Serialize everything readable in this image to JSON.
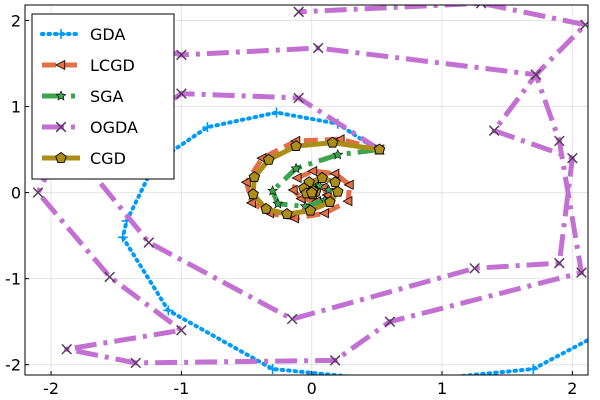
{
  "chart_data": {
    "type": "line",
    "title": "",
    "xlabel": "",
    "ylabel": "",
    "xlim": [
      -2.2,
      2.12
    ],
    "ylim": [
      -2.12,
      2.18
    ],
    "grid": true,
    "legend_position": "top-left",
    "x_ticks": [
      -2,
      -1,
      0,
      1,
      2
    ],
    "x_tick_labels": [
      "-2",
      "-1",
      "0",
      "1",
      "2"
    ],
    "y_ticks": [
      -2,
      -1,
      0,
      1,
      2
    ],
    "y_tick_labels": [
      "-2",
      "-1",
      "0",
      "1",
      "2"
    ],
    "series": [
      {
        "name": "GDA",
        "color": "#009AFA",
        "line_style": "dotted",
        "marker": "plus",
        "points": [
          [
            0.5,
            0.5
          ],
          [
            0.2,
            0.8
          ],
          [
            -0.27,
            0.93
          ],
          [
            -0.8,
            0.76
          ],
          [
            -1.2,
            0.35
          ],
          [
            -1.42,
            -0.33
          ],
          [
            -1.45,
            -0.52
          ],
          [
            -1.1,
            -1.37
          ],
          [
            -0.3,
            -2.05
          ],
          [
            0.7,
            -2.2
          ],
          [
            1.7,
            -2.05
          ],
          [
            2.2,
            -1.65
          ]
        ]
      },
      {
        "name": "LCGD",
        "color": "#E26F46",
        "line_style": "dashed",
        "marker": "triangle-left",
        "points": [
          [
            0.52,
            0.5
          ],
          [
            0.22,
            0.62
          ],
          [
            -0.12,
            0.6
          ],
          [
            -0.38,
            0.4
          ],
          [
            -0.5,
            0.12
          ],
          [
            -0.46,
            -0.12
          ],
          [
            -0.32,
            -0.24
          ],
          [
            -0.13,
            -0.3
          ],
          [
            0.1,
            -0.24
          ],
          [
            0.28,
            -0.1
          ],
          [
            0.29,
            0.09
          ],
          [
            0.18,
            0.22
          ],
          [
            0.01,
            0.25
          ],
          [
            -0.11,
            0.17
          ],
          [
            -0.14,
            0.03
          ],
          [
            -0.08,
            -0.07
          ],
          [
            0.04,
            -0.1
          ],
          [
            0.12,
            -0.03
          ],
          [
            0.09,
            0.06
          ],
          [
            0.02,
            0.07
          ],
          [
            -0.02,
            0.03
          ],
          [
            0.0,
            0.0
          ]
        ]
      },
      {
        "name": "SGA",
        "color": "#3DA44D",
        "line_style": "dash-dot",
        "marker": "star",
        "points": [
          [
            0.52,
            0.5
          ],
          [
            0.2,
            0.44
          ],
          [
            -0.12,
            0.28
          ],
          [
            -0.3,
            0.02
          ],
          [
            -0.26,
            -0.13
          ],
          [
            -0.05,
            -0.16
          ],
          [
            0.1,
            -0.09
          ],
          [
            0.13,
            0.03
          ],
          [
            0.06,
            0.08
          ],
          [
            -0.01,
            0.05
          ],
          [
            -0.02,
            0.0
          ],
          [
            0.0,
            0.0
          ]
        ]
      },
      {
        "name": "OGDA",
        "color": "#C271D2",
        "line_style": "dash-dot",
        "marker": "x",
        "points": [
          [
            0.52,
            0.5
          ],
          [
            -0.1,
            1.1
          ],
          [
            -1.0,
            1.15
          ],
          [
            -1.75,
            0.35
          ],
          [
            -1.25,
            -0.58
          ],
          [
            -0.15,
            -1.47
          ],
          [
            1.25,
            -0.88
          ],
          [
            1.9,
            -0.82
          ],
          [
            2.0,
            0.4
          ],
          [
            1.4,
            0.72
          ],
          [
            1.72,
            1.37
          ],
          [
            0.05,
            1.68
          ],
          [
            -1.0,
            1.6
          ],
          [
            -2.1,
            2.0
          ],
          [
            -1.72,
            1.15
          ],
          [
            -2.1,
            0.0
          ],
          [
            -1.55,
            -0.98
          ],
          [
            -1.0,
            -1.6
          ],
          [
            -1.88,
            -1.82
          ],
          [
            -1.35,
            -1.98
          ],
          [
            0.18,
            -1.95
          ],
          [
            0.6,
            -1.5
          ],
          [
            2.07,
            -0.93
          ],
          [
            1.9,
            0.6
          ],
          [
            1.72,
            1.37
          ],
          [
            2.1,
            1.95
          ],
          [
            1.3,
            2.2
          ],
          [
            -0.1,
            2.1
          ]
        ]
      },
      {
        "name": "CGD",
        "color": "#AC8D18",
        "line_style": "solid",
        "marker": "pentagon",
        "points": [
          [
            0.52,
            0.5
          ],
          [
            0.16,
            0.58
          ],
          [
            -0.12,
            0.54
          ],
          [
            -0.33,
            0.38
          ],
          [
            -0.44,
            0.18
          ],
          [
            -0.45,
            -0.02
          ],
          [
            -0.35,
            -0.19
          ],
          [
            -0.19,
            -0.25
          ],
          [
            -0.01,
            -0.21
          ],
          [
            0.14,
            -0.11
          ],
          [
            0.2,
            0.01
          ],
          [
            0.18,
            0.12
          ],
          [
            0.08,
            0.17
          ],
          [
            -0.02,
            0.12
          ],
          [
            -0.06,
            0.05
          ],
          [
            -0.04,
            -0.01
          ],
          [
            0.01,
            -0.02
          ],
          [
            0.03,
            0.01
          ],
          [
            0.01,
            0.02
          ],
          [
            0.0,
            0.0
          ]
        ]
      }
    ]
  }
}
